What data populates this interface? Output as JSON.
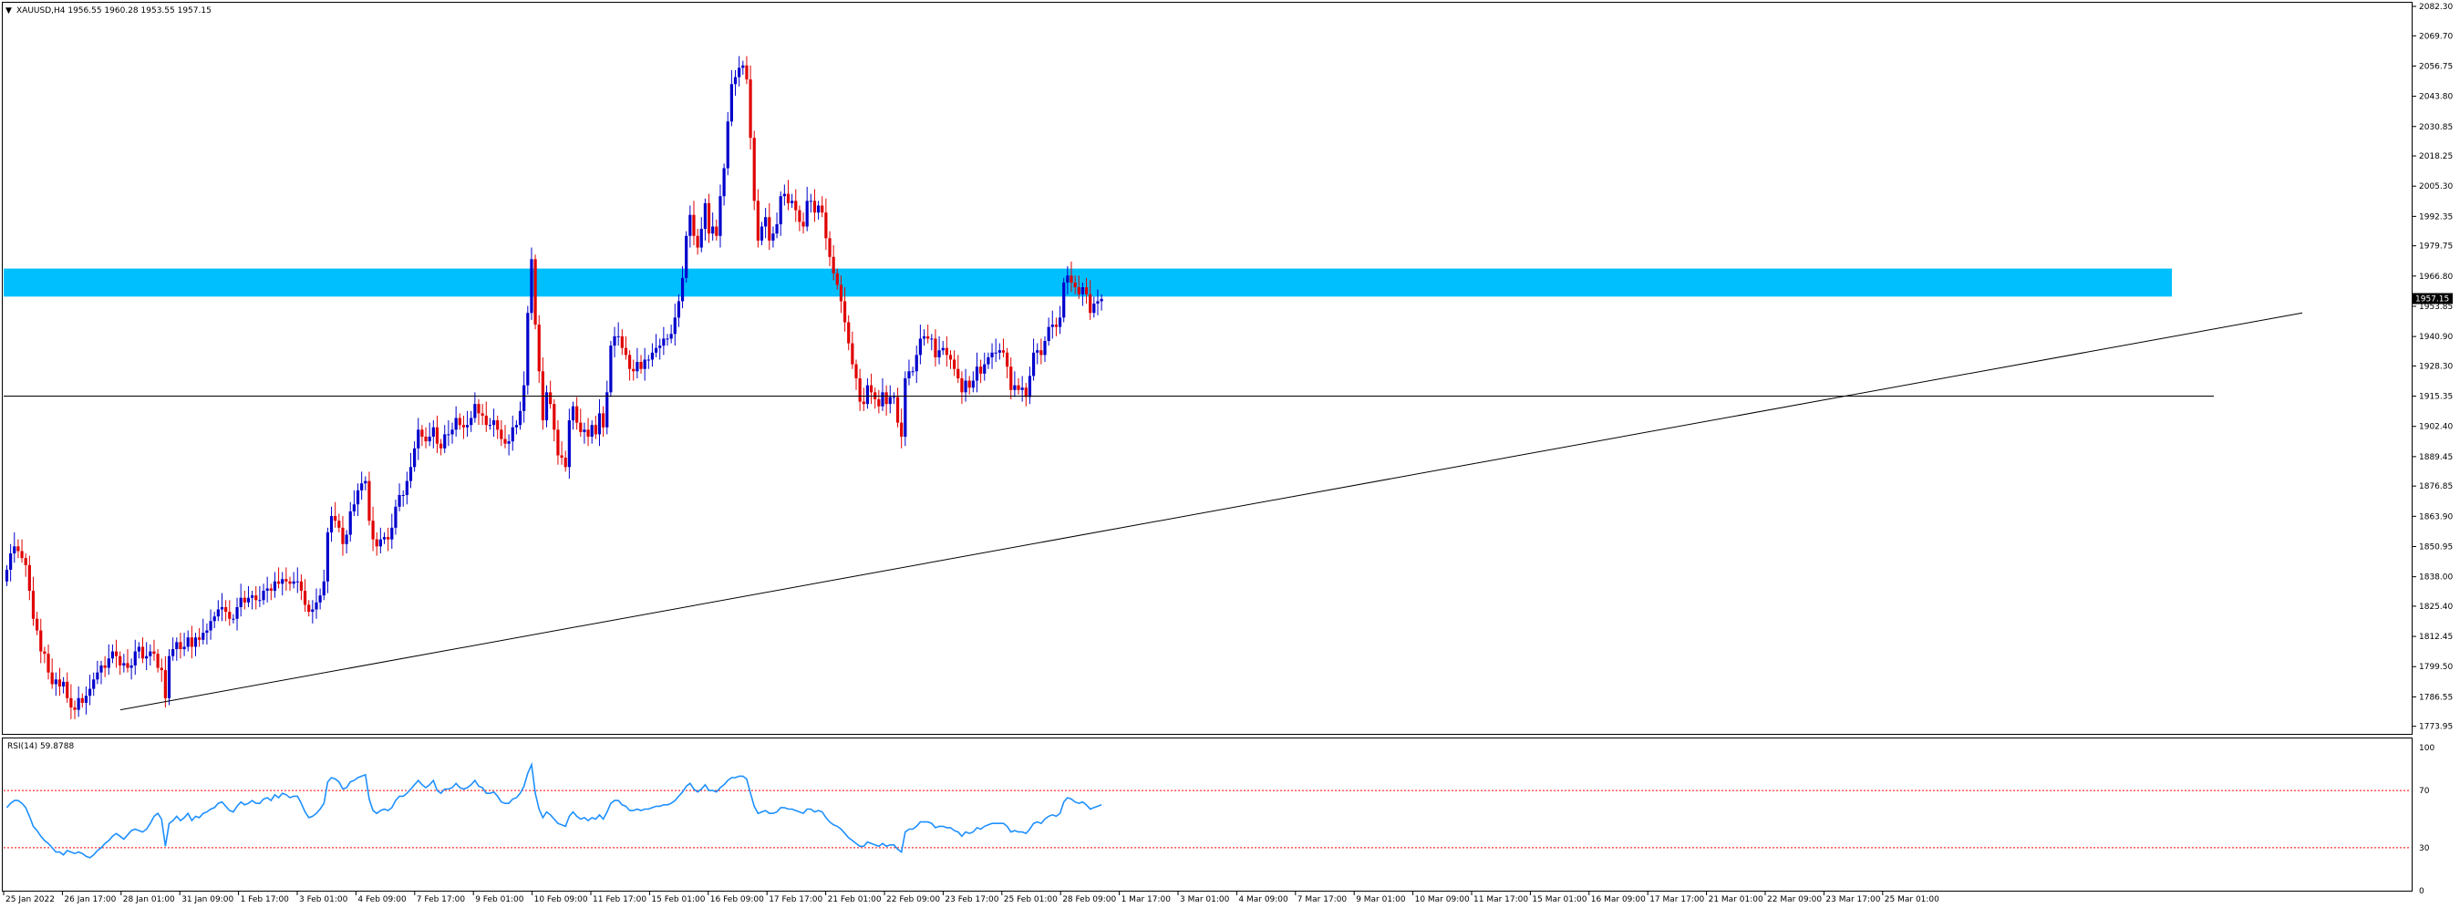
{
  "header": {
    "main_title": "XAUUSD,H4  1956.55 1960.28 1953.55 1957.15",
    "rsi_title": "RSI(14) 59.8788"
  },
  "colors": {
    "bull": "#0000cc",
    "bear": "#e00000",
    "zone": "#00bfff",
    "level_line": "#000000",
    "rsi_line": "#1e90ff",
    "rsi_level": "#ff0000",
    "price_badge_bg": "#000000",
    "price_badge_fg": "#ffffff"
  },
  "chart_data": [
    {
      "type": "candlestick",
      "symbol": "XAUUSD",
      "timeframe": "H4",
      "ylim": [
        1767.0,
        2086.0
      ],
      "price_scale_labels": [
        "2082.30",
        "2069.70",
        "2056.75",
        "2043.80",
        "2030.85",
        "2018.25",
        "2005.30",
        "1992.35",
        "1979.75",
        "1966.80",
        "1953.85",
        "1940.90",
        "1928.30",
        "1915.35",
        "1902.40",
        "1889.45",
        "1876.85",
        "1863.90",
        "1850.95",
        "1838.00",
        "1825.40",
        "1812.45",
        "1799.50",
        "1786.55",
        "1773.95"
      ],
      "current_price": "1957.15",
      "time_labels": [
        "25 Jan 2022",
        "26 Jan 17:00",
        "28 Jan 01:00",
        "31 Jan 09:00",
        "1 Feb 17:00",
        "3 Feb 01:00",
        "4 Feb 09:00",
        "7 Feb 17:00",
        "9 Feb 01:00",
        "10 Feb 09:00",
        "11 Feb 17:00",
        "15 Feb 01:00",
        "16 Feb 09:00",
        "17 Feb 17:00",
        "21 Feb 01:00",
        "22 Feb 09:00",
        "23 Feb 17:00",
        "25 Feb 01:00",
        "28 Feb 09:00",
        "1 Mar 17:00",
        "3 Mar 01:00",
        "4 Mar 09:00",
        "7 Mar 17:00",
        "9 Mar 01:00",
        "10 Mar 09:00",
        "11 Mar 17:00",
        "15 Mar 01:00",
        "16 Mar 09:00",
        "17 Mar 17:00",
        "21 Mar 01:00",
        "22 Mar 09:00",
        "23 Mar 17:00",
        "25 Mar 01:00"
      ],
      "closes": [
        1841,
        1848,
        1851,
        1849,
        1846,
        1843,
        1832,
        1820,
        1815,
        1806,
        1805,
        1797,
        1792,
        1794,
        1791,
        1793,
        1786,
        1782,
        1781,
        1786,
        1784,
        1787,
        1790,
        1794,
        1797,
        1800,
        1799,
        1803,
        1806,
        1804,
        1800,
        1801,
        1799,
        1800,
        1806,
        1808,
        1803,
        1804,
        1806,
        1805,
        1799,
        1798,
        1786,
        1804,
        1807,
        1810,
        1807,
        1808,
        1812,
        1808,
        1812,
        1811,
        1814,
        1815,
        1819,
        1821,
        1824,
        1825,
        1823,
        1820,
        1820,
        1825,
        1829,
        1827,
        1829,
        1830,
        1828,
        1828,
        1832,
        1833,
        1832,
        1836,
        1835,
        1837,
        1836,
        1835,
        1836,
        1836,
        1832,
        1826,
        1823,
        1824,
        1827,
        1830,
        1836,
        1857,
        1864,
        1862,
        1859,
        1852,
        1856,
        1866,
        1869,
        1875,
        1878,
        1879,
        1862,
        1854,
        1851,
        1854,
        1855,
        1854,
        1859,
        1868,
        1873,
        1873,
        1879,
        1885,
        1893,
        1901,
        1898,
        1896,
        1898,
        1902,
        1895,
        1893,
        1899,
        1899,
        1901,
        1906,
        1903,
        1902,
        1903,
        1906,
        1912,
        1908,
        1907,
        1903,
        1903,
        1905,
        1901,
        1897,
        1895,
        1896,
        1902,
        1903,
        1909,
        1920,
        1951,
        1974,
        1946,
        1926,
        1905,
        1917,
        1912,
        1901,
        1890,
        1889,
        1885,
        1905,
        1911,
        1904,
        1900,
        1901,
        1898,
        1903,
        1899,
        1908,
        1902,
        1917,
        1937,
        1941,
        1941,
        1936,
        1933,
        1927,
        1926,
        1930,
        1927,
        1931,
        1931,
        1934,
        1936,
        1937,
        1940,
        1940,
        1942,
        1949,
        1956,
        1966,
        1984,
        1993,
        1984,
        1979,
        1987,
        1998,
        1985,
        1988,
        1984,
        2001,
        2013,
        2033,
        2049,
        2052,
        2056,
        2057,
        2051,
        2026,
        1999,
        1982,
        1988,
        1992,
        1982,
        1985,
        1989,
        2001,
        2002,
        1998,
        1999,
        1995,
        1990,
        1988,
        1999,
        1999,
        1994,
        1997,
        1994,
        1983,
        1975,
        1968,
        1963,
        1956,
        1947,
        1938,
        1929,
        1923,
        1913,
        1912,
        1920,
        1917,
        1914,
        1911,
        1917,
        1912,
        1915,
        1915,
        1904,
        1898,
        1923,
        1926,
        1926,
        1933,
        1940,
        1941,
        1940,
        1940,
        1932,
        1935,
        1936,
        1933,
        1931,
        1927,
        1923,
        1917,
        1922,
        1919,
        1922,
        1928,
        1925,
        1929,
        1932,
        1934,
        1934,
        1935,
        1934,
        1928,
        1918,
        1920,
        1918,
        1919,
        1915,
        1924,
        1934,
        1935,
        1933,
        1939,
        1945,
        1946,
        1945,
        1949,
        1964,
        1967,
        1964,
        1962,
        1959,
        1962,
        1959,
        1951,
        1955,
        1956,
        1957
      ],
      "candle_x_start": 7.5,
      "candle_step": 4.14,
      "horizontal_level": 1915.35,
      "resistance_zone": [
        1958.0,
        1970.0
      ],
      "trendline": {
        "from": [
          "28 Jan 01:00",
          1781.0
        ],
        "to": [
          "beyond 25 Mar",
          1951.0
        ]
      }
    },
    {
      "type": "line",
      "name": "RSI(14)",
      "ylim": [
        0,
        100
      ],
      "scale_labels": [
        "100",
        "70",
        "30",
        "0"
      ],
      "levels": [
        70,
        30
      ],
      "values": [
        58,
        61,
        63,
        63,
        61,
        58,
        52,
        45,
        42,
        38,
        35,
        33,
        30,
        27,
        27,
        25,
        28,
        27,
        26,
        27,
        26,
        24,
        23,
        25,
        28,
        30,
        33,
        35,
        38,
        40,
        38,
        36,
        39,
        42,
        43,
        42,
        41,
        43,
        47,
        52,
        54,
        50,
        31,
        47,
        49,
        52,
        49,
        51,
        54,
        49,
        52,
        51,
        54,
        55,
        57,
        58,
        61,
        62,
        59,
        56,
        55,
        59,
        62,
        60,
        61,
        63,
        61,
        61,
        64,
        65,
        63,
        67,
        65,
        68,
        67,
        65,
        66,
        66,
        61,
        55,
        51,
        52,
        54,
        57,
        61,
        76,
        79,
        78,
        76,
        71,
        72,
        76,
        77,
        79,
        80,
        81,
        64,
        56,
        54,
        56,
        57,
        56,
        58,
        63,
        66,
        66,
        68,
        71,
        74,
        77,
        74,
        72,
        74,
        77,
        70,
        68,
        71,
        71,
        72,
        75,
        72,
        71,
        72,
        74,
        77,
        73,
        72,
        68,
        68,
        69,
        66,
        62,
        61,
        61,
        64,
        65,
        68,
        73,
        82,
        88,
        68,
        57,
        51,
        55,
        53,
        50,
        47,
        46,
        45,
        52,
        55,
        52,
        50,
        51,
        49,
        51,
        50,
        53,
        50,
        55,
        61,
        63,
        63,
        60,
        59,
        56,
        56,
        57,
        56,
        57,
        57,
        58,
        59,
        59,
        60,
        60,
        61,
        63,
        66,
        69,
        73,
        75,
        71,
        69,
        71,
        74,
        70,
        70,
        69,
        72,
        74,
        77,
        79,
        79,
        80,
        80,
        78,
        68,
        59,
        54,
        55,
        56,
        54,
        54,
        55,
        58,
        58,
        57,
        57,
        56,
        55,
        54,
        57,
        57,
        55,
        56,
        55,
        51,
        48,
        46,
        45,
        43,
        40,
        37,
        35,
        33,
        31,
        31,
        34,
        33,
        32,
        31,
        33,
        31,
        32,
        32,
        29,
        27,
        41,
        43,
        43,
        45,
        48,
        48,
        48,
        47,
        44,
        45,
        45,
        44,
        44,
        42,
        41,
        38,
        41,
        40,
        41,
        44,
        43,
        45,
        46,
        47,
        47,
        47,
        47,
        45,
        41,
        42,
        41,
        41,
        40,
        43,
        47,
        48,
        47,
        50,
        52,
        53,
        52,
        54,
        62,
        65,
        64,
        62,
        61,
        62,
        60,
        57,
        58,
        59,
        60
      ]
    }
  ]
}
